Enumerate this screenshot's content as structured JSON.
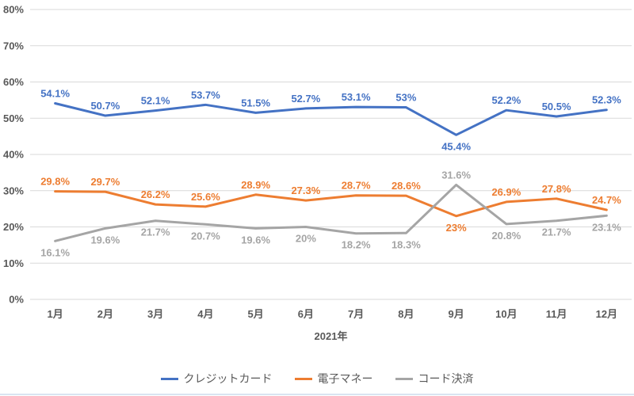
{
  "chart_data": {
    "type": "line",
    "title": "",
    "x_axis_title": "2021年",
    "categories": [
      "1月",
      "2月",
      "3月",
      "4月",
      "5月",
      "6月",
      "7月",
      "8月",
      "9月",
      "10月",
      "11月",
      "12月"
    ],
    "y_ticks": [
      "0%",
      "10%",
      "20%",
      "30%",
      "40%",
      "50%",
      "60%",
      "70%",
      "80%"
    ],
    "ylim": [
      0,
      80
    ],
    "grid": true,
    "grid_color": "#D9D9D9",
    "axis_text_color": "#595959",
    "legend_position": "bottom",
    "series": [
      {
        "name": "クレジットカード",
        "color": "#4472C4",
        "values": [
          54.1,
          50.7,
          52.1,
          53.7,
          51.5,
          52.7,
          53.1,
          53,
          45.4,
          52.2,
          50.5,
          52.3
        ],
        "labels": [
          "54.1%",
          "50.7%",
          "52.1%",
          "53.7%",
          "51.5%",
          "52.7%",
          "53.1%",
          "53%",
          "45.4%",
          "52.2%",
          "50.5%",
          "52.3%"
        ],
        "label_below_indices": [
          8
        ]
      },
      {
        "name": "電子マネー",
        "color": "#ED7D31",
        "values": [
          29.8,
          29.7,
          26.2,
          25.6,
          28.9,
          27.3,
          28.7,
          28.6,
          23,
          26.9,
          27.8,
          24.7
        ],
        "labels": [
          "29.8%",
          "29.7%",
          "26.2%",
          "25.6%",
          "28.9%",
          "27.3%",
          "28.7%",
          "28.6%",
          "23%",
          "26.9%",
          "27.8%",
          "24.7%"
        ],
        "label_below_indices": [
          8
        ]
      },
      {
        "name": "コード決済",
        "color": "#A5A5A5",
        "values": [
          16.1,
          19.6,
          21.7,
          20.7,
          19.6,
          20,
          18.2,
          18.3,
          31.6,
          20.8,
          21.7,
          23.1
        ],
        "labels": [
          "16.1%",
          "19.6%",
          "21.7%",
          "20.7%",
          "19.6%",
          "20%",
          "18.2%",
          "18.3%",
          "31.6%",
          "20.8%",
          "21.7%",
          "23.1%"
        ],
        "label_below_indices": [
          0,
          1,
          2,
          3,
          4,
          5,
          6,
          7,
          9,
          10,
          11
        ]
      }
    ]
  }
}
